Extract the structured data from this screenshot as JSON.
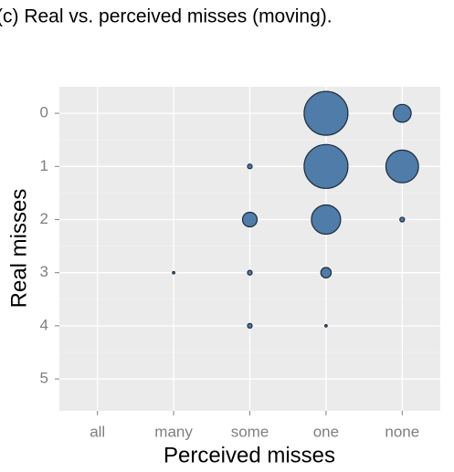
{
  "chart_data": {
    "type": "scatter",
    "title": "(c) Real vs. perceived misses (moving).",
    "x_label": "Perceived misses",
    "y_label": "Real misses",
    "categories": [
      "all",
      "many",
      "some",
      "one",
      "none"
    ],
    "x": [
      "one",
      "none",
      "some",
      "one",
      "none",
      "some",
      "one",
      "none",
      "many",
      "some",
      "one",
      "some",
      "one"
    ],
    "y": [
      0,
      0,
      1,
      1,
      1,
      2,
      2,
      2,
      3,
      3,
      3,
      4,
      4
    ],
    "sizes": [
      36,
      6,
      0.4,
      36,
      20,
      4,
      16,
      0.4,
      0.1,
      0.4,
      2,
      0.4,
      0.1
    ],
    "color": "#4f7ca8",
    "ylim": [
      5.6,
      -0.5
    ],
    "yticks": [
      0,
      1,
      2,
      3,
      4,
      5
    ],
    "grid": true
  }
}
